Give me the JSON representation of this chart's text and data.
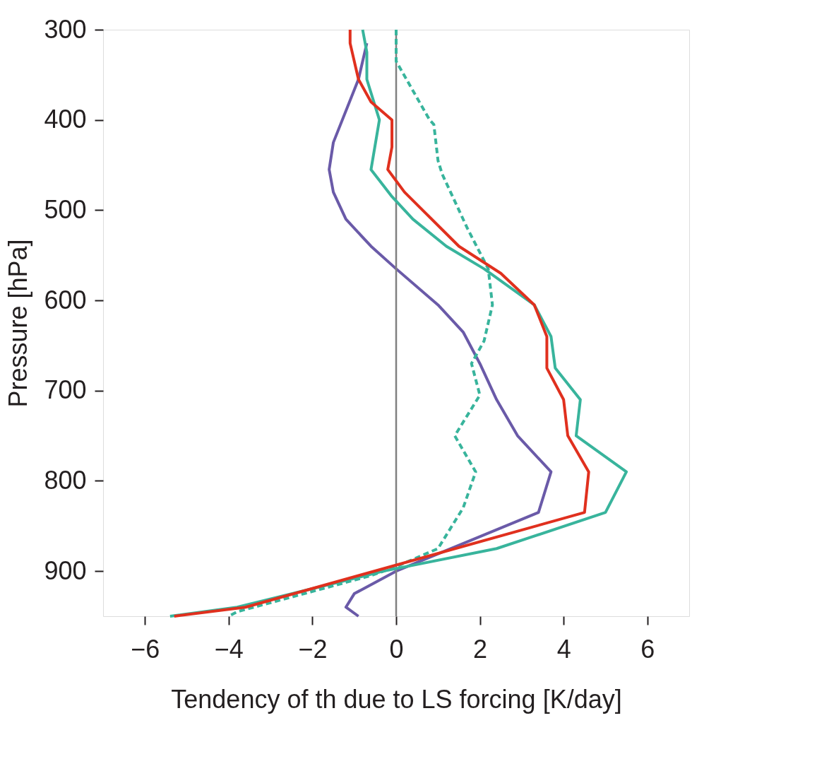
{
  "chart_data": {
    "type": "line",
    "xlabel": "Tendency of th due to LS forcing [K/day]",
    "ylabel": "Pressure [hPa]",
    "xlim": [
      -7,
      7
    ],
    "xticks": [
      -6,
      -4,
      -2,
      0,
      2,
      4,
      6
    ],
    "ylim": [
      950,
      300
    ],
    "yticks": [
      300,
      400,
      500,
      600,
      700,
      800,
      900
    ],
    "grid": false,
    "marker": "none",
    "ref_lines": [
      {
        "axis": "x",
        "value": 0,
        "color": "#808080",
        "line_style": "solid"
      }
    ],
    "series": [
      {
        "color": "#6a5aa8",
        "line_style": "solid",
        "x": [
          -0.7,
          -0.9,
          -1.5,
          -1.6,
          -1.5,
          -1.2,
          -0.6,
          0,
          1.0,
          1.6,
          2.0,
          2.4,
          2.9,
          3.7,
          3.4,
          0,
          -1.0,
          -1.2,
          -0.9
        ],
        "values": [
          315,
          355,
          425,
          455,
          480,
          510,
          540,
          565,
          605,
          635,
          670,
          710,
          750,
          790,
          835,
          900,
          925,
          940,
          950
        ]
      },
      {
        "color": "#38b49c",
        "line_style": "dashed",
        "x": [
          0,
          0,
          0,
          0.8,
          0.9,
          1.0,
          1.1,
          1.7,
          2.2,
          2.3,
          2.1,
          1.8,
          2.0,
          1.4,
          1.9,
          1.6,
          1.0,
          0,
          -0.6,
          -3.8,
          -4.0
        ],
        "values": [
          300,
          315,
          335,
          400,
          405,
          445,
          460,
          520,
          565,
          605,
          645,
          670,
          705,
          750,
          790,
          830,
          875,
          895,
          905,
          945,
          950
        ]
      },
      {
        "color": "#38b49c",
        "line_style": "solid",
        "x": [
          -0.8,
          -0.7,
          -0.7,
          -0.4,
          -0.6,
          -0.1,
          0.4,
          1.2,
          2.1,
          3.3,
          3.7,
          3.8,
          4.4,
          4.3,
          5.5,
          5.0,
          2.4,
          -0.3,
          -3.8,
          -5.4
        ],
        "values": [
          300,
          325,
          355,
          400,
          455,
          485,
          510,
          540,
          565,
          605,
          640,
          675,
          710,
          750,
          790,
          835,
          875,
          900,
          940,
          950
        ]
      },
      {
        "color": "#e0301e",
        "line_style": "solid",
        "x": [
          -1.1,
          -1.1,
          -0.9,
          -0.6,
          -0.1,
          -0.1,
          -0.2,
          0.2,
          1.5,
          2.5,
          3.3,
          3.6,
          3.6,
          4.0,
          4.1,
          4.6,
          4.5,
          -0.9,
          -3.6,
          -5.3
        ],
        "values": [
          300,
          315,
          355,
          380,
          400,
          430,
          455,
          480,
          540,
          570,
          605,
          640,
          675,
          710,
          750,
          790,
          835,
          905,
          940,
          950
        ]
      }
    ]
  }
}
